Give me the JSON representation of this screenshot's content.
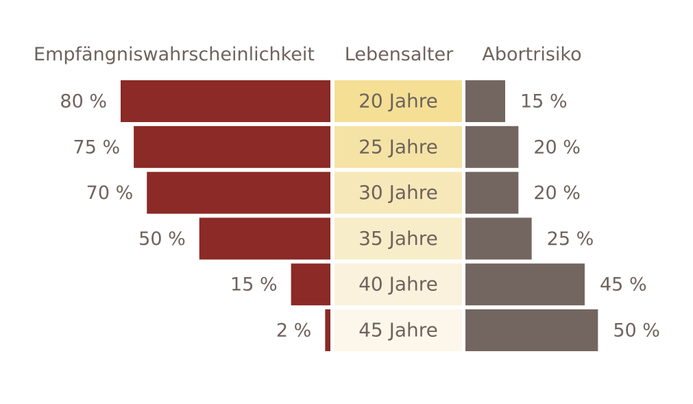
{
  "chart_data": {
    "type": "bar",
    "layout": "butterfly",
    "headers": {
      "left": "Empfängniswahrscheinlichkeit",
      "center": "Lebensalter",
      "right": "Abortrisiko"
    },
    "categories": [
      "20 Jahre",
      "25 Jahre",
      "30 Jahre",
      "35 Jahre",
      "40 Jahre",
      "45 Jahre"
    ],
    "series": [
      {
        "name": "Empfängniswahrscheinlichkeit",
        "side": "left",
        "color": "#8b2a26",
        "values": [
          80,
          75,
          70,
          50,
          15,
          2
        ],
        "labels": [
          "80 %",
          "75 %",
          "70 %",
          "50 %",
          "15 %",
          "2 %"
        ]
      },
      {
        "name": "Abortrisiko",
        "side": "right",
        "color": "#736660",
        "values": [
          15,
          20,
          20,
          25,
          45,
          50
        ],
        "labels": [
          "15 %",
          "20 %",
          "20 %",
          "25 %",
          "45 %",
          "50 %"
        ]
      }
    ],
    "category_colors": [
      "#f4df95",
      "#f5e3a5",
      "#f6e8b8",
      "#f8edc9",
      "#faf2dc",
      "#fcf7ea"
    ],
    "unit": "%"
  }
}
